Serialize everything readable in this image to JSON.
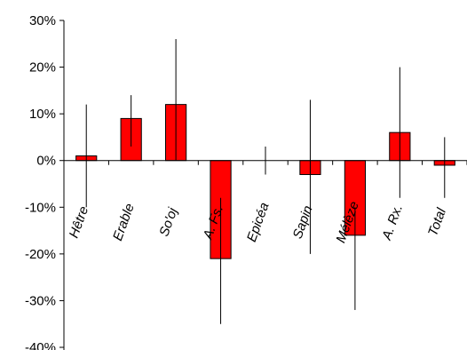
{
  "chart_data": {
    "type": "bar",
    "categories": [
      "Hêtre",
      "Erable",
      "So'oj",
      "A. Fs.",
      "Epicéa",
      "Sapin",
      "Mélèze",
      "A. Rx.",
      "Total"
    ],
    "values": [
      1,
      9,
      12,
      -21,
      0,
      -3,
      -16,
      6,
      -1
    ],
    "error_bars": [
      {
        "low": -10,
        "high": 12
      },
      {
        "low": 3,
        "high": 14
      },
      {
        "low": 0,
        "high": 26
      },
      {
        "low": -35,
        "high": -8
      },
      {
        "low": -3,
        "high": 3
      },
      {
        "low": -20,
        "high": 13
      },
      {
        "low": -32,
        "high": -10
      },
      {
        "low": -8,
        "high": 20
      },
      {
        "low": -8,
        "high": 5
      }
    ],
    "y_ticks": [
      "30%",
      "20%",
      "10%",
      "0%",
      "-10%",
      "-20%",
      "-30%",
      "-40%"
    ],
    "y_tick_values": [
      30,
      20,
      10,
      0,
      -10,
      -20,
      -30,
      -40
    ],
    "ylim": [
      -40,
      30
    ],
    "bar_color": "#ff0000",
    "grid": false
  }
}
